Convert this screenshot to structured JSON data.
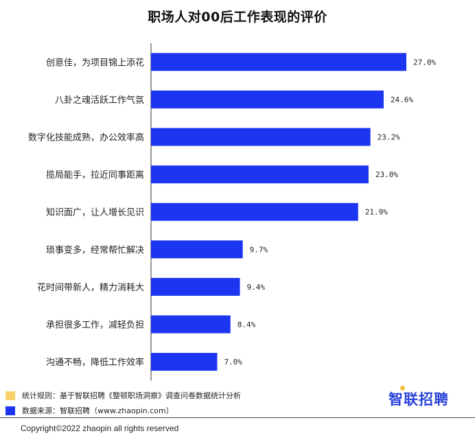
{
  "title": "职场人对00后工作表现的评价",
  "chart_data": {
    "type": "bar",
    "orientation": "horizontal",
    "categories": [
      "创意佳，为项目锦上添花",
      "八卦之魂活跃工作气氛",
      "数字化技能成熟，办公效率高",
      "揽局能手，拉近同事距离",
      "知识面广，让人增长见识",
      "琐事变多，经常帮忙解决",
      "花时间带新人，精力消耗大",
      "承担很多工作，减轻负担",
      "沟通不畅，降低工作效率"
    ],
    "values": [
      27.0,
      24.6,
      23.2,
      23.0,
      21.9,
      9.7,
      9.4,
      8.4,
      7.0
    ],
    "value_labels": [
      "27.0%",
      "24.6%",
      "23.2%",
      "23.0%",
      "21.9%",
      "9.7%",
      "9.4%",
      "8.4%",
      "7.0%"
    ],
    "unit": "%",
    "bar_color": "#1c35f0",
    "xlim": [
      0,
      30
    ],
    "grid": false,
    "legend": "none"
  },
  "notes": {
    "rule_color": "#f7d26a",
    "rule_text": "统计规则：基于智联招聘《整顿职场洞察》调查问卷数据统计分析",
    "source_color": "#1c35f0",
    "source_text": "数据来源：智联招聘（www.zhaopin.com）"
  },
  "brand": "智联招聘",
  "copyright": "Copyright©2022 zhaopin all rights reserved"
}
